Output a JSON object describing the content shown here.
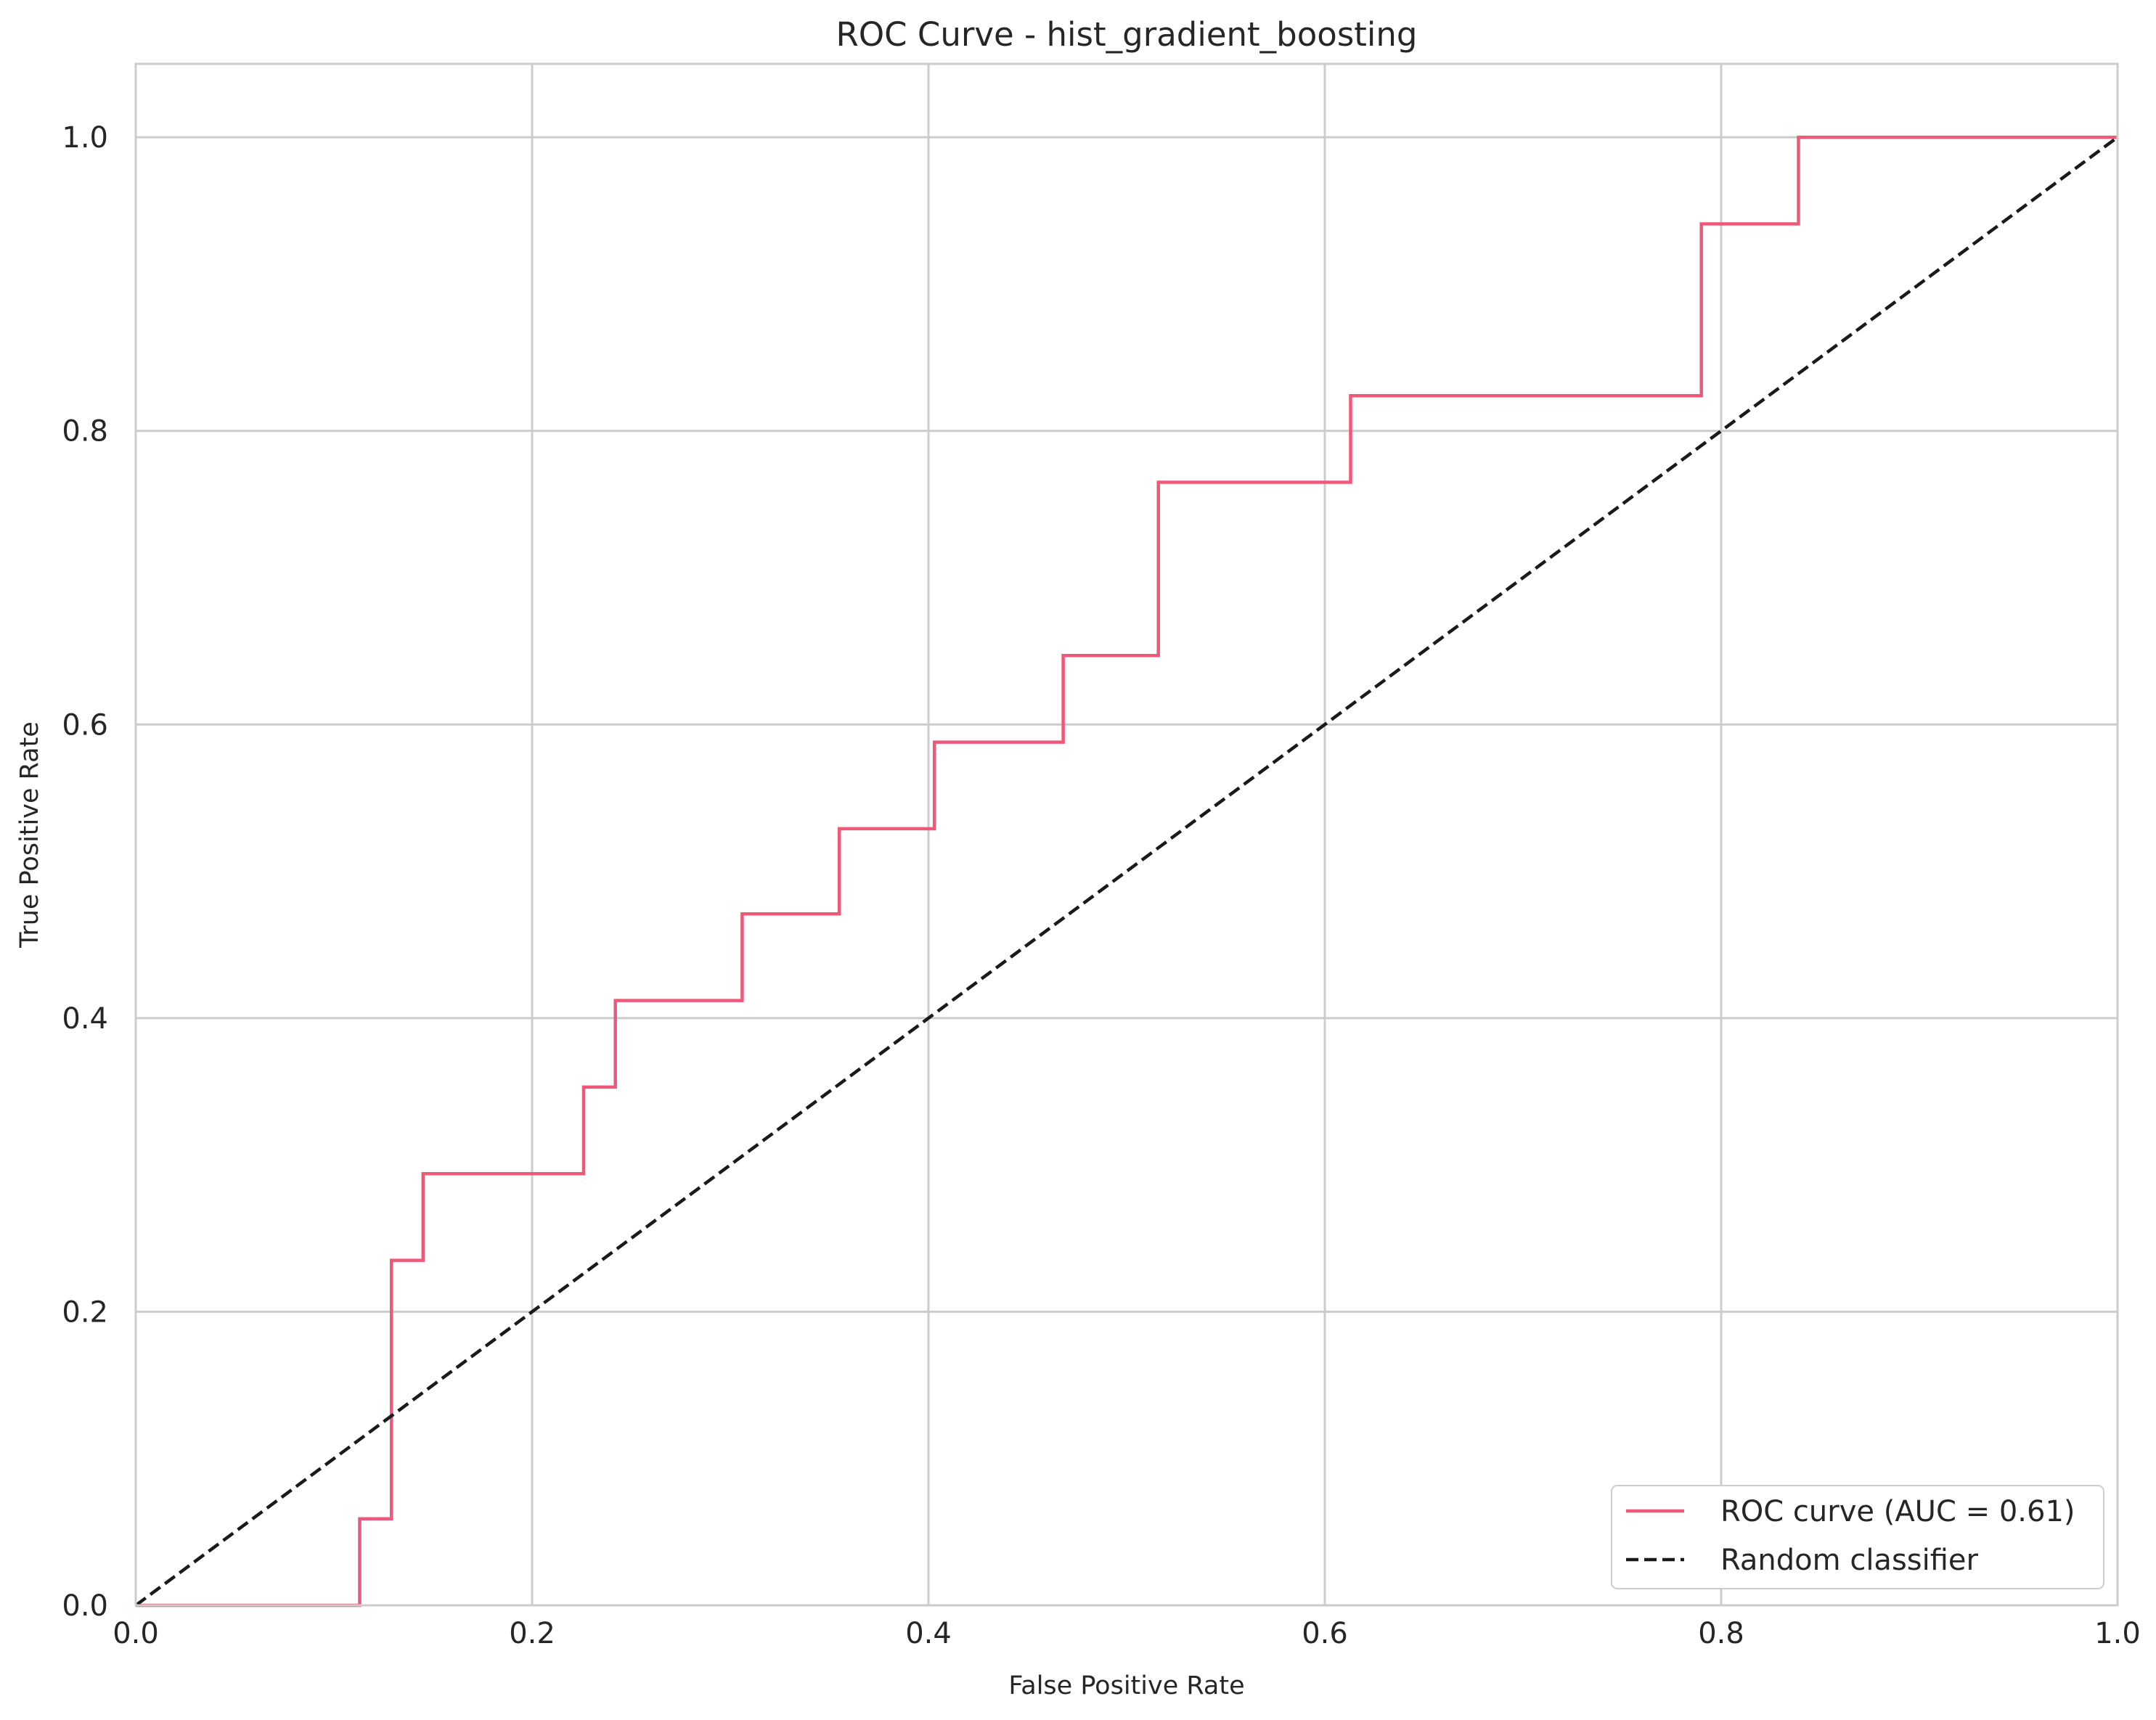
{
  "chart_data": {
    "type": "line",
    "title": "ROC Curve - hist_gradient_boosting",
    "xlabel": "False Positive Rate",
    "ylabel": "True Positive Rate",
    "xlim": [
      0.0,
      1.0
    ],
    "ylim": [
      0.0,
      1.05
    ],
    "x_ticks": [
      "0.0",
      "0.2",
      "0.4",
      "0.6",
      "0.8",
      "1.0"
    ],
    "y_ticks": [
      "0.0",
      "0.2",
      "0.4",
      "0.6",
      "0.8",
      "1.0"
    ],
    "grid": true,
    "legend_position": "bottom-right",
    "series": [
      {
        "name": "ROC curve (AUC = 0.61)",
        "color": "#f0587a",
        "style": "solid",
        "x": [
          0.0,
          0.113,
          0.113,
          0.129,
          0.129,
          0.145,
          0.145,
          0.226,
          0.226,
          0.242,
          0.242,
          0.306,
          0.306,
          0.355,
          0.355,
          0.403,
          0.403,
          0.468,
          0.468,
          0.516,
          0.516,
          0.613,
          0.613,
          0.79,
          0.79,
          0.839,
          0.839,
          1.0
        ],
        "y": [
          0.0,
          0.0,
          0.059,
          0.059,
          0.235,
          0.235,
          0.294,
          0.294,
          0.353,
          0.353,
          0.412,
          0.412,
          0.471,
          0.471,
          0.529,
          0.529,
          0.588,
          0.588,
          0.647,
          0.647,
          0.765,
          0.765,
          0.824,
          0.824,
          0.941,
          0.941,
          1.0,
          1.0
        ]
      },
      {
        "name": "Random classifier",
        "color": "#1a1a1a",
        "style": "dashed",
        "x": [
          0.0,
          1.0
        ],
        "y": [
          0.0,
          1.0
        ]
      }
    ]
  }
}
